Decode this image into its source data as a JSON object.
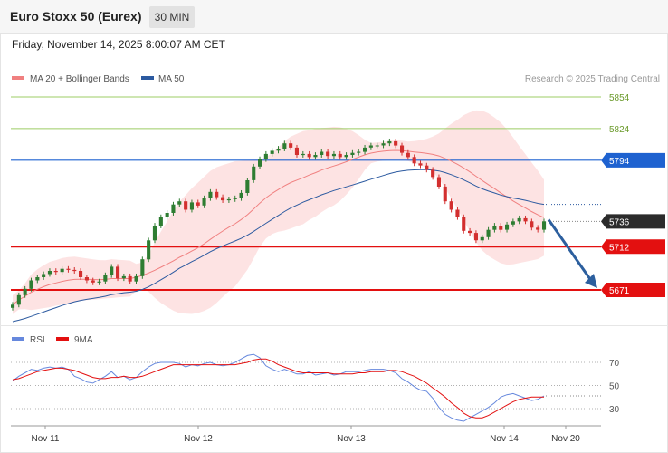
{
  "header": {
    "title": "Euro Stoxx 50 (Eurex)",
    "timeframe": "30 MIN"
  },
  "datetime": "Friday, November 14, 2025 8:00:07 AM CET",
  "legend": {
    "ma20_label": "MA 20 + Bollinger Bands",
    "ma50_label": "MA 50",
    "copyright": "Research © 2025 Trading Central"
  },
  "rsi_legend": {
    "rsi_label": "RSI",
    "ma9_label": "9MA"
  },
  "colors": {
    "candle_up": "#2e7d32",
    "candle_down": "#d32f2f",
    "bollinger_fill": "#fde0e0",
    "ma20": "#f08080",
    "ma50": "#2c5aa0",
    "resistance_green": "#9ccc65",
    "pivot_blue": "#1e62d0",
    "support_red": "#e31010",
    "arrow": "#2c5f9e",
    "rsi": "#6688dd",
    "rsi_ma": "#e31010"
  },
  "chart_data": [
    {
      "type": "candlestick",
      "title": "Euro Stoxx 50 (Eurex)",
      "timeframe": "30 MIN",
      "x_ticks": [
        "Nov 11",
        "Nov 12",
        "Nov 13",
        "Nov 14",
        "Nov 20"
      ],
      "ylim": [
        5625,
        5870
      ],
      "price_levels": [
        {
          "value": 5854,
          "label": "5854",
          "kind": "resistance"
        },
        {
          "value": 5824,
          "label": "5824",
          "kind": "resistance"
        },
        {
          "value": 5794,
          "label": "5794",
          "kind": "pivot"
        },
        {
          "value": 5736,
          "label": "5736",
          "kind": "last"
        },
        {
          "value": 5712,
          "label": "5712",
          "kind": "support"
        },
        {
          "value": 5671,
          "label": "5671",
          "kind": "support"
        }
      ],
      "close_path": [
        5657,
        5666,
        5672,
        5680,
        5683,
        5686,
        5689,
        5688,
        5691,
        5690,
        5689,
        5683,
        5680,
        5678,
        5679,
        5685,
        5693,
        5682,
        5684,
        5679,
        5684,
        5700,
        5718,
        5732,
        5740,
        5744,
        5752,
        5755,
        5747,
        5754,
        5751,
        5758,
        5764,
        5759,
        5756,
        5757,
        5758,
        5763,
        5775,
        5788,
        5795,
        5800,
        5803,
        5805,
        5810,
        5806,
        5799,
        5800,
        5797,
        5799,
        5802,
        5798,
        5800,
        5797,
        5799,
        5801,
        5802,
        5806,
        5808,
        5808,
        5810,
        5812,
        5808,
        5801,
        5797,
        5791,
        5789,
        5785,
        5778,
        5769,
        5755,
        5747,
        5740,
        5727,
        5725,
        5718,
        5721,
        5728,
        5732,
        5728,
        5733,
        5736,
        5739,
        5736,
        5730,
        5728,
        5736
      ],
      "ma50_start": 5640,
      "forecast_target": 5671
    },
    {
      "type": "line",
      "title": "RSI",
      "series": [
        {
          "name": "RSI",
          "values": [
            54,
            58,
            61,
            64,
            63,
            65,
            66,
            65,
            66,
            64,
            58,
            56,
            53,
            52,
            55,
            58,
            62,
            57,
            58,
            55,
            57,
            62,
            66,
            69,
            70,
            70,
            70,
            69,
            66,
            68,
            67,
            69,
            70,
            68,
            67,
            68,
            70,
            73,
            76,
            77,
            74,
            67,
            64,
            62,
            64,
            62,
            60,
            60,
            62,
            59,
            60,
            61,
            59,
            60,
            62,
            62,
            62,
            63,
            64,
            64,
            64,
            63,
            61,
            56,
            53,
            49,
            46,
            45,
            39,
            31,
            25,
            22,
            20,
            19,
            22,
            25,
            28,
            31,
            35,
            40,
            42,
            43,
            41,
            39,
            37,
            38,
            41
          ]
        },
        {
          "name": "9MA",
          "values": [
            55,
            56,
            58,
            60,
            62,
            63,
            64,
            65,
            65,
            64,
            63,
            61,
            59,
            57,
            56,
            56,
            57,
            57,
            58,
            57,
            57,
            58,
            60,
            62,
            64,
            66,
            68,
            68,
            68,
            68,
            68,
            68,
            68,
            68,
            68,
            68,
            68,
            69,
            70,
            72,
            73,
            73,
            71,
            68,
            66,
            64,
            62,
            61,
            61,
            61,
            61,
            61,
            60,
            60,
            60,
            60,
            61,
            61,
            62,
            62,
            62,
            63,
            63,
            62,
            60,
            58,
            55,
            52,
            48,
            44,
            40,
            35,
            31,
            26,
            23,
            22,
            22,
            24,
            27,
            30,
            33,
            36,
            38,
            39,
            40,
            40,
            40
          ]
        }
      ],
      "levels": [
        70,
        50,
        30
      ],
      "ylim": [
        10,
        95
      ]
    }
  ]
}
